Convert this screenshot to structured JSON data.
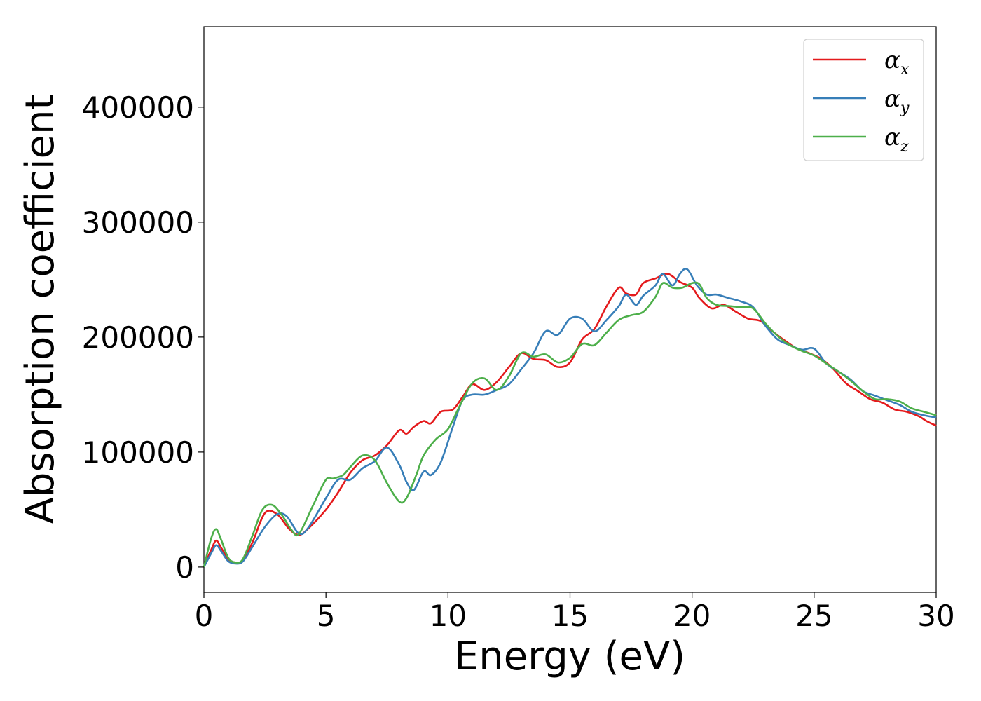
{
  "chart_data": {
    "type": "line",
    "title": "",
    "xlabel": "Energy (eV)",
    "ylabel": "Absorption coefficient",
    "xlim": [
      0,
      30
    ],
    "ylim": [
      -22000,
      470000
    ],
    "xticks": [
      0,
      5,
      10,
      15,
      20,
      25,
      30
    ],
    "yticks": [
      0,
      100000,
      200000,
      300000,
      400000
    ],
    "grid": false,
    "legend_position": "top-right",
    "series": [
      {
        "name": "α",
        "subscript": "x",
        "color": "#e41a1c",
        "x": [
          0,
          0.3,
          0.5,
          0.7,
          1.0,
          1.3,
          1.6,
          2.0,
          2.5,
          3.0,
          3.5,
          3.9,
          4.3,
          5.0,
          5.5,
          6.0,
          6.5,
          7.0,
          7.5,
          8.0,
          8.3,
          8.6,
          9.0,
          9.3,
          9.7,
          10.2,
          10.6,
          11.0,
          11.5,
          12.0,
          12.5,
          13.0,
          13.5,
          14.0,
          14.5,
          15.0,
          15.5,
          16.0,
          16.5,
          17.0,
          17.3,
          17.7,
          18.0,
          18.5,
          19.0,
          19.5,
          20.0,
          20.3,
          20.8,
          21.3,
          21.8,
          22.3,
          22.8,
          23.3,
          23.8,
          24.3,
          24.8,
          25.3,
          25.8,
          26.3,
          26.8,
          27.3,
          27.8,
          28.3,
          28.8,
          29.3,
          29.6,
          30.0
        ],
        "values": [
          0,
          15000,
          23000,
          17000,
          7000,
          4000,
          6000,
          22000,
          47000,
          46000,
          33000,
          28000,
          34000,
          50000,
          65000,
          82000,
          93000,
          97000,
          106000,
          119000,
          116000,
          122000,
          127000,
          125000,
          135000,
          137000,
          148000,
          159000,
          154000,
          161000,
          174000,
          186000,
          181000,
          180000,
          174000,
          178000,
          198000,
          207000,
          227000,
          243000,
          238000,
          237000,
          247000,
          251000,
          255000,
          248000,
          243000,
          234000,
          225000,
          228000,
          222000,
          216000,
          214000,
          205000,
          197000,
          190000,
          186000,
          181000,
          172000,
          160000,
          153000,
          146000,
          143000,
          137000,
          135000,
          131000,
          127000,
          123000
        ]
      },
      {
        "name": "α",
        "subscript": "y",
        "color": "#377eb8",
        "x": [
          0,
          0.3,
          0.5,
          0.7,
          1.0,
          1.3,
          1.6,
          2.0,
          2.5,
          3.0,
          3.4,
          3.9,
          4.3,
          5.0,
          5.5,
          6.0,
          6.5,
          7.0,
          7.5,
          8.0,
          8.3,
          8.6,
          9.0,
          9.3,
          9.7,
          10.2,
          10.6,
          11.0,
          11.5,
          12.0,
          12.5,
          13.0,
          13.5,
          14.0,
          14.5,
          15.0,
          15.5,
          16.0,
          16.5,
          17.0,
          17.3,
          17.7,
          18.0,
          18.5,
          18.8,
          19.2,
          19.5,
          19.8,
          20.2,
          20.6,
          21.0,
          21.5,
          22.0,
          22.5,
          23.0,
          23.5,
          24.0,
          24.5,
          25.0,
          25.5,
          26.0,
          26.5,
          27.0,
          27.5,
          28.0,
          28.5,
          29.0,
          29.5,
          30.0
        ],
        "values": [
          0,
          12000,
          19000,
          14000,
          5000,
          3000,
          5000,
          18000,
          35000,
          46000,
          44000,
          29000,
          35000,
          60000,
          76000,
          76000,
          86000,
          92000,
          104000,
          89000,
          74000,
          67000,
          83000,
          80000,
          91000,
          122000,
          145000,
          150000,
          150000,
          154000,
          159000,
          172000,
          186000,
          205000,
          202000,
          216000,
          216000,
          205000,
          215000,
          227000,
          237000,
          228000,
          236000,
          245000,
          255000,
          245000,
          255000,
          259000,
          245000,
          237000,
          237000,
          234000,
          231000,
          226000,
          210000,
          198000,
          193000,
          189000,
          190000,
          177000,
          170000,
          163000,
          153000,
          149000,
          145000,
          141000,
          135000,
          132000,
          130000
        ]
      },
      {
        "name": "α",
        "subscript": "z",
        "color": "#4daf4a",
        "x": [
          0,
          0.3,
          0.5,
          0.7,
          1.0,
          1.3,
          1.6,
          2.0,
          2.4,
          2.8,
          3.2,
          3.6,
          3.9,
          4.5,
          5.0,
          5.3,
          5.7,
          6.0,
          6.5,
          7.0,
          7.5,
          8.0,
          8.3,
          8.7,
          9.0,
          9.5,
          10.0,
          10.5,
          11.0,
          11.5,
          12.0,
          12.5,
          13.0,
          13.5,
          14.0,
          14.5,
          15.0,
          15.5,
          16.0,
          16.5,
          17.0,
          17.5,
          18.0,
          18.5,
          18.8,
          19.2,
          19.6,
          20.0,
          20.3,
          20.6,
          21.0,
          21.5,
          22.0,
          22.5,
          23.0,
          23.5,
          24.0,
          24.5,
          25.0,
          25.5,
          26.0,
          26.5,
          27.0,
          27.5,
          28.0,
          28.5,
          29.0,
          29.5,
          30.0
        ],
        "values": [
          0,
          25000,
          33000,
          24000,
          8000,
          4000,
          7000,
          28000,
          50000,
          54000,
          45000,
          32000,
          29000,
          55000,
          76000,
          77000,
          80000,
          87000,
          97000,
          93000,
          73000,
          57000,
          60000,
          80000,
          97000,
          111000,
          120000,
          141000,
          160000,
          164000,
          154000,
          166000,
          186000,
          183000,
          185000,
          178000,
          182000,
          194000,
          193000,
          204000,
          215000,
          219000,
          222000,
          235000,
          247000,
          243000,
          243000,
          247000,
          246000,
          234000,
          228000,
          227000,
          226000,
          225000,
          212000,
          201000,
          193000,
          188000,
          184000,
          177000,
          170000,
          162000,
          153000,
          146000,
          146000,
          144000,
          138000,
          135000,
          132000
        ]
      }
    ]
  }
}
